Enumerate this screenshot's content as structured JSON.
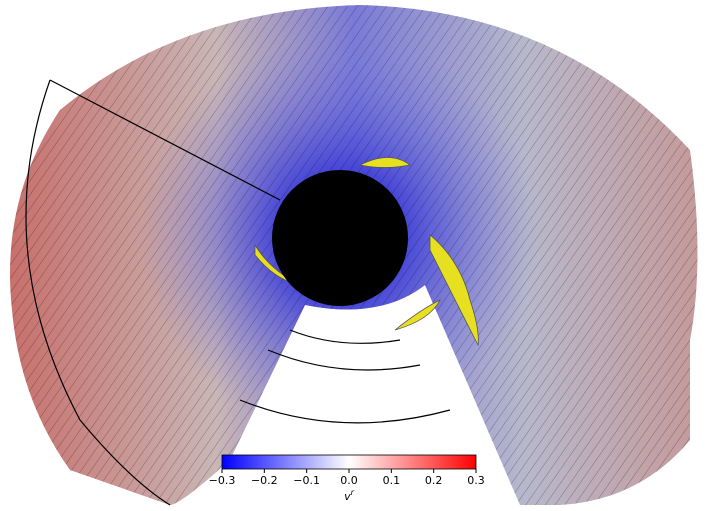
{
  "colorbar": {
    "vlim": [
      -0.3,
      0.3
    ],
    "ticks": [
      {
        "value": -0.3,
        "label": "−0.3"
      },
      {
        "value": -0.2,
        "label": "−0.2"
      },
      {
        "value": -0.1,
        "label": "−0.1"
      },
      {
        "value": 0,
        "label": "0.0"
      },
      0.1,
      0.2,
      0.3
    ],
    "label": {
      "base": "v",
      "superscript": "r"
    },
    "colors": [
      "#0000ff",
      "#ffffff",
      "#ff0000"
    ]
  }
}
